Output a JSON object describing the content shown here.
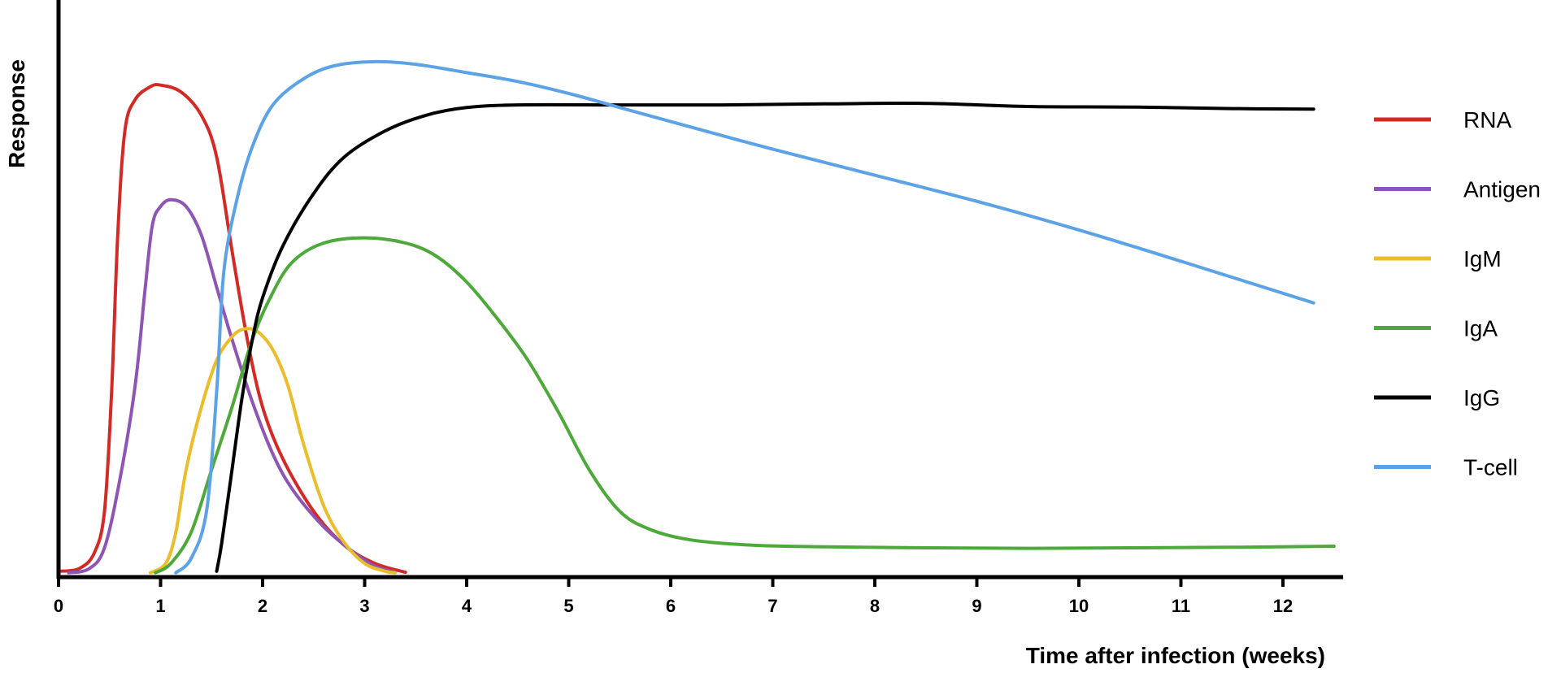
{
  "chart_data": {
    "type": "line",
    "title": "",
    "xlabel": "Time after infection (weeks)",
    "ylabel": "Response",
    "xlim": [
      0,
      12.5
    ],
    "ylim": [
      0,
      1
    ],
    "x_ticks": [
      0,
      1,
      2,
      3,
      4,
      5,
      6,
      7,
      8,
      9,
      10,
      11,
      12
    ],
    "y_ticks_shown": false,
    "grid": false,
    "legend_position": "right",
    "series": [
      {
        "name": "RNA",
        "color": "#d42a26",
        "points": [
          [
            0,
            0.005
          ],
          [
            0.2,
            0.01
          ],
          [
            0.35,
            0.04
          ],
          [
            0.45,
            0.12
          ],
          [
            0.52,
            0.35
          ],
          [
            0.58,
            0.65
          ],
          [
            0.65,
            0.85
          ],
          [
            0.75,
            0.91
          ],
          [
            0.9,
            0.935
          ],
          [
            1.0,
            0.938
          ],
          [
            1.2,
            0.925
          ],
          [
            1.4,
            0.88
          ],
          [
            1.55,
            0.8
          ],
          [
            1.7,
            0.62
          ],
          [
            1.85,
            0.45
          ],
          [
            2.0,
            0.32
          ],
          [
            2.2,
            0.22
          ],
          [
            2.5,
            0.12
          ],
          [
            2.8,
            0.055
          ],
          [
            3.1,
            0.02
          ],
          [
            3.4,
            0.003
          ]
        ]
      },
      {
        "name": "Antigen",
        "color": "#8e55b5",
        "points": [
          [
            0.1,
            0.002
          ],
          [
            0.3,
            0.01
          ],
          [
            0.45,
            0.05
          ],
          [
            0.6,
            0.18
          ],
          [
            0.75,
            0.36
          ],
          [
            0.85,
            0.55
          ],
          [
            0.92,
            0.67
          ],
          [
            1.0,
            0.705
          ],
          [
            1.1,
            0.718
          ],
          [
            1.25,
            0.705
          ],
          [
            1.4,
            0.65
          ],
          [
            1.55,
            0.55
          ],
          [
            1.7,
            0.45
          ],
          [
            1.9,
            0.33
          ],
          [
            2.1,
            0.23
          ],
          [
            2.3,
            0.16
          ],
          [
            2.6,
            0.09
          ],
          [
            2.9,
            0.04
          ],
          [
            3.1,
            0.015
          ],
          [
            3.3,
            0.003
          ]
        ]
      },
      {
        "name": "IgM",
        "color": "#ecbd2a",
        "points": [
          [
            0.9,
            0.002
          ],
          [
            1.05,
            0.02
          ],
          [
            1.15,
            0.08
          ],
          [
            1.25,
            0.2
          ],
          [
            1.4,
            0.32
          ],
          [
            1.55,
            0.41
          ],
          [
            1.7,
            0.455
          ],
          [
            1.82,
            0.47
          ],
          [
            1.95,
            0.465
          ],
          [
            2.1,
            0.43
          ],
          [
            2.25,
            0.36
          ],
          [
            2.4,
            0.25
          ],
          [
            2.6,
            0.13
          ],
          [
            2.8,
            0.06
          ],
          [
            3.0,
            0.02
          ],
          [
            3.2,
            0.005
          ],
          [
            3.3,
            0.002
          ]
        ]
      },
      {
        "name": "IgA",
        "color": "#4ea93b",
        "points": [
          [
            0.95,
            0.002
          ],
          [
            1.1,
            0.02
          ],
          [
            1.3,
            0.08
          ],
          [
            1.5,
            0.2
          ],
          [
            1.7,
            0.32
          ],
          [
            1.9,
            0.45
          ],
          [
            2.1,
            0.54
          ],
          [
            2.3,
            0.6
          ],
          [
            2.6,
            0.635
          ],
          [
            3.0,
            0.645
          ],
          [
            3.4,
            0.635
          ],
          [
            3.7,
            0.61
          ],
          [
            4.0,
            0.56
          ],
          [
            4.3,
            0.49
          ],
          [
            4.6,
            0.41
          ],
          [
            4.9,
            0.31
          ],
          [
            5.2,
            0.2
          ],
          [
            5.5,
            0.12
          ],
          [
            5.8,
            0.085
          ],
          [
            6.2,
            0.065
          ],
          [
            6.8,
            0.055
          ],
          [
            7.5,
            0.052
          ],
          [
            8.5,
            0.05
          ],
          [
            9.5,
            0.049
          ],
          [
            10.5,
            0.05
          ],
          [
            11.5,
            0.051
          ],
          [
            12.5,
            0.053
          ]
        ]
      },
      {
        "name": "IgG",
        "color": "#000000",
        "points": [
          [
            1.55,
            0.005
          ],
          [
            1.6,
            0.06
          ],
          [
            1.7,
            0.2
          ],
          [
            1.8,
            0.34
          ],
          [
            1.9,
            0.45
          ],
          [
            2.0,
            0.53
          ],
          [
            2.2,
            0.63
          ],
          [
            2.5,
            0.73
          ],
          [
            2.8,
            0.8
          ],
          [
            3.2,
            0.85
          ],
          [
            3.6,
            0.88
          ],
          [
            4.0,
            0.895
          ],
          [
            4.5,
            0.9
          ],
          [
            5.5,
            0.9
          ],
          [
            6.5,
            0.9
          ],
          [
            7.5,
            0.902
          ],
          [
            8.5,
            0.903
          ],
          [
            9.5,
            0.897
          ],
          [
            10.5,
            0.896
          ],
          [
            11.5,
            0.893
          ],
          [
            12.3,
            0.892
          ]
        ]
      },
      {
        "name": "T-cell",
        "color": "#5ba3e6",
        "points": [
          [
            1.15,
            0.002
          ],
          [
            1.3,
            0.03
          ],
          [
            1.45,
            0.12
          ],
          [
            1.55,
            0.35
          ],
          [
            1.62,
            0.58
          ],
          [
            1.75,
            0.72
          ],
          [
            1.9,
            0.82
          ],
          [
            2.1,
            0.9
          ],
          [
            2.4,
            0.95
          ],
          [
            2.7,
            0.975
          ],
          [
            3.1,
            0.983
          ],
          [
            3.5,
            0.978
          ],
          [
            4.0,
            0.962
          ],
          [
            4.5,
            0.945
          ],
          [
            5.0,
            0.922
          ],
          [
            5.5,
            0.895
          ],
          [
            6.0,
            0.868
          ],
          [
            7.0,
            0.815
          ],
          [
            8.0,
            0.765
          ],
          [
            9.0,
            0.715
          ],
          [
            10.0,
            0.66
          ],
          [
            11.0,
            0.6
          ],
          [
            12.3,
            0.52
          ]
        ]
      }
    ]
  }
}
